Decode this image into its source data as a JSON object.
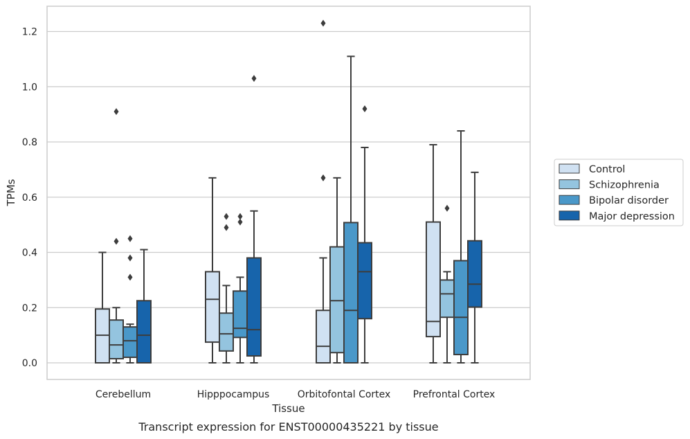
{
  "caption": "Transcript expression for ENST00000435221 by tissue",
  "chart_data": {
    "type": "boxplot",
    "xlabel": "Tissue",
    "ylabel": "TPMs",
    "ylim": [
      -0.06,
      1.29
    ],
    "yticks": [
      "0.0",
      "0.2",
      "0.4",
      "0.6",
      "0.8",
      "1.0",
      "1.2"
    ],
    "ytick_values": [
      0,
      0.2,
      0.4,
      0.6,
      0.8,
      1.0,
      1.2
    ],
    "grid": true,
    "legend_position": "right",
    "categories": [
      "Cerebellum",
      "Hipppocampus",
      "Orbitofontal Cortex",
      "Prefrontal Cortex"
    ],
    "series": [
      {
        "name": "Control",
        "color": "#d0e1f2",
        "boxes": [
          {
            "min": 0.0,
            "q1": 0.0,
            "median": 0.1,
            "q3": 0.195,
            "max": 0.4,
            "outliers": []
          },
          {
            "min": 0.0,
            "q1": 0.075,
            "median": 0.23,
            "q3": 0.33,
            "max": 0.67,
            "outliers": []
          },
          {
            "min": 0.0,
            "q1": 0.0,
            "median": 0.06,
            "q3": 0.19,
            "max": 0.38,
            "outliers": [
              0.67,
              1.23
            ]
          },
          {
            "min": 0.0,
            "q1": 0.095,
            "median": 0.15,
            "q3": 0.51,
            "max": 0.79,
            "outliers": []
          }
        ]
      },
      {
        "name": "Schizophrenia",
        "color": "#94c4df",
        "boxes": [
          {
            "min": 0.0,
            "q1": 0.015,
            "median": 0.065,
            "q3": 0.155,
            "max": 0.2,
            "outliers": [
              0.44,
              0.91
            ]
          },
          {
            "min": 0.0,
            "q1": 0.043,
            "median": 0.105,
            "q3": 0.18,
            "max": 0.28,
            "outliers": [
              0.49,
              0.53
            ]
          },
          {
            "min": 0.0,
            "q1": 0.037,
            "median": 0.225,
            "q3": 0.42,
            "max": 0.67,
            "outliers": []
          },
          {
            "min": 0.0,
            "q1": 0.165,
            "median": 0.25,
            "q3": 0.3,
            "max": 0.33,
            "outliers": [
              0.56
            ]
          }
        ]
      },
      {
        "name": "Bipolar disorder",
        "color": "#4a98c9",
        "boxes": [
          {
            "min": 0.0,
            "q1": 0.02,
            "median": 0.08,
            "q3": 0.13,
            "max": 0.14,
            "outliers": [
              0.31,
              0.38,
              0.45
            ]
          },
          {
            "min": 0.0,
            "q1": 0.092,
            "median": 0.125,
            "q3": 0.26,
            "max": 0.31,
            "outliers": [
              0.51,
              0.53
            ]
          },
          {
            "min": 0.0,
            "q1": 0.0,
            "median": 0.19,
            "q3": 0.508,
            "max": 1.11,
            "outliers": []
          },
          {
            "min": 0.0,
            "q1": 0.03,
            "median": 0.165,
            "q3": 0.37,
            "max": 0.84,
            "outliers": []
          }
        ]
      },
      {
        "name": "Major depression",
        "color": "#1764ab",
        "boxes": [
          {
            "min": 0.0,
            "q1": 0.0,
            "median": 0.1,
            "q3": 0.225,
            "max": 0.41,
            "outliers": []
          },
          {
            "min": 0.0,
            "q1": 0.025,
            "median": 0.12,
            "q3": 0.38,
            "max": 0.55,
            "outliers": [
              1.03
            ]
          },
          {
            "min": 0.0,
            "q1": 0.16,
            "median": 0.33,
            "q3": 0.435,
            "max": 0.78,
            "outliers": [
              0.92
            ]
          },
          {
            "min": 0.0,
            "q1": 0.202,
            "median": 0.285,
            "q3": 0.442,
            "max": 0.69,
            "outliers": []
          }
        ]
      }
    ]
  }
}
